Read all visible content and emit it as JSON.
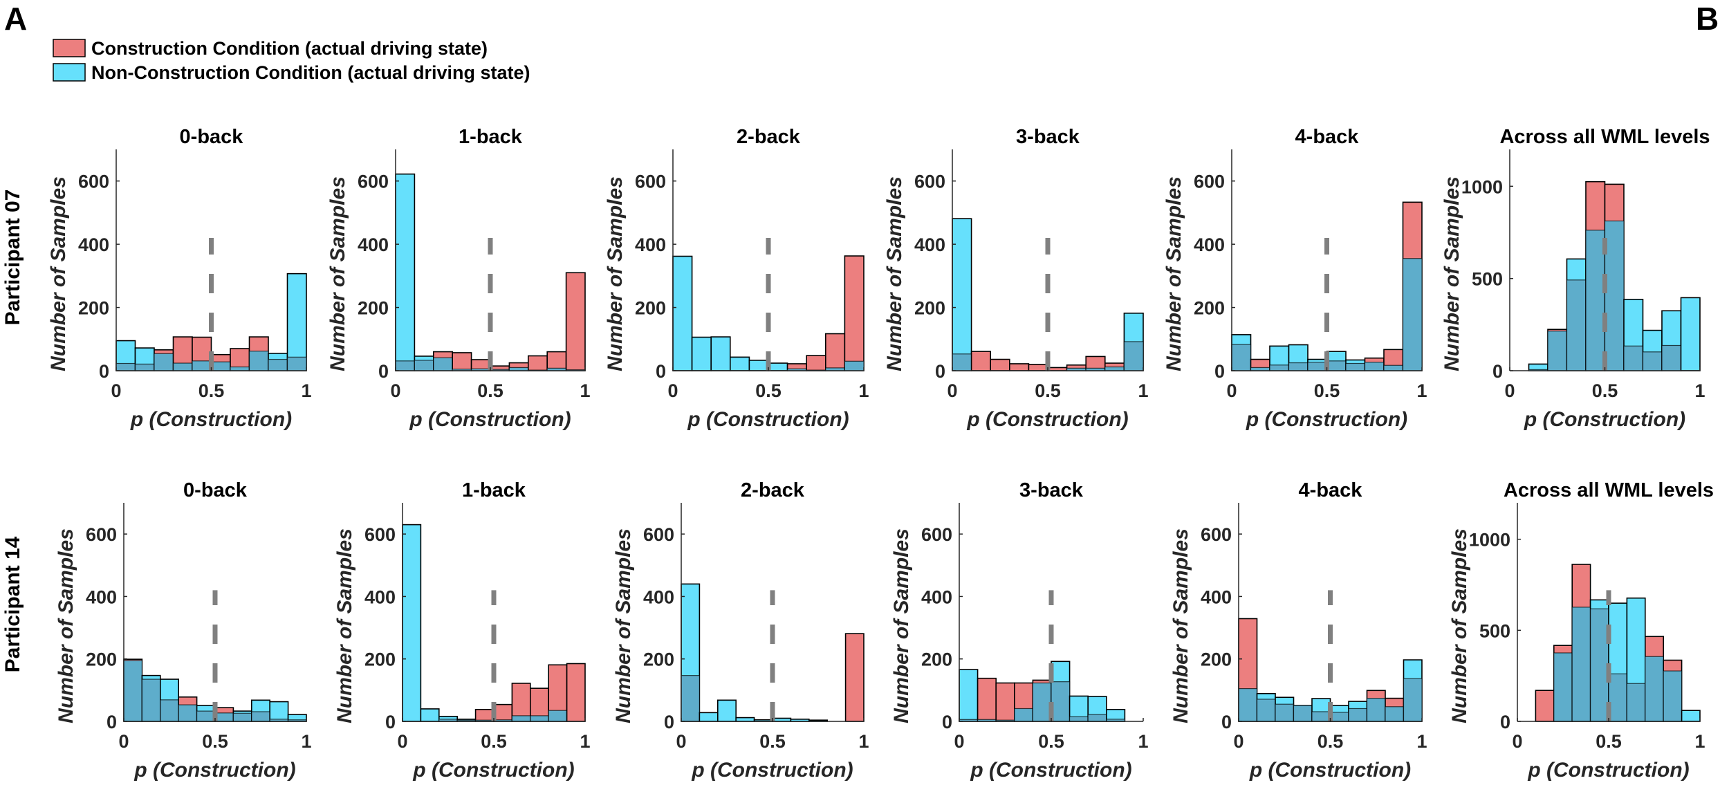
{
  "figure": {
    "panel_letters": [
      "A",
      "B"
    ],
    "legend": [
      {
        "label": "Construction Condition (actual driving state)",
        "color": "#EC7F7F"
      },
      {
        "label": "Non-Construction Condition (actual driving state)",
        "color": "#66E0FC"
      }
    ],
    "overlap_color": "#5EADCB",
    "threshold_color": "#808080",
    "row_labels": [
      "Participant 07",
      "Participant 14"
    ]
  },
  "chart_data": [
    {
      "type": "bar",
      "participant": "Participant 07",
      "title": "0-back",
      "xlabel": "p (Construction)",
      "ylabel": "Number of Samples",
      "xlim": [
        0,
        1
      ],
      "ylim": [
        0,
        700
      ],
      "xticks": [
        "0",
        "0.5",
        "1"
      ],
      "yticks": [
        0,
        200,
        400,
        600
      ],
      "bin_edges": [
        0,
        0.1,
        0.2,
        0.3,
        0.4,
        0.5,
        0.6,
        0.7,
        0.8,
        0.9,
        1
      ],
      "threshold": 0.5,
      "threshold_top": 420,
      "series": [
        {
          "name": "Construction",
          "values": [
            23,
            21,
            66,
            107,
            106,
            51,
            70,
            107,
            36,
            43
          ]
        },
        {
          "name": "Non-Construction",
          "values": [
            95,
            72,
            54,
            24,
            31,
            28,
            12,
            62,
            55,
            307
          ]
        }
      ]
    },
    {
      "type": "bar",
      "participant": "Participant 07",
      "title": "1-back",
      "xlabel": "p (Construction)",
      "ylabel": "Number of Samples",
      "xlim": [
        0,
        1
      ],
      "ylim": [
        0,
        700
      ],
      "xticks": [
        "0",
        "0.5",
        "1"
      ],
      "yticks": [
        0,
        200,
        400,
        600
      ],
      "bin_edges": [
        0,
        0.1,
        0.2,
        0.3,
        0.4,
        0.5,
        0.6,
        0.7,
        0.8,
        0.9,
        1
      ],
      "threshold": 0.5,
      "threshold_top": 420,
      "series": [
        {
          "name": "Construction",
          "values": [
            31,
            33,
            60,
            57,
            35,
            15,
            25,
            47,
            60,
            310
          ]
        },
        {
          "name": "Non-Construction",
          "values": [
            622,
            46,
            41,
            5,
            6,
            4,
            10,
            2,
            8,
            3
          ]
        }
      ]
    },
    {
      "type": "bar",
      "participant": "Participant 07",
      "title": "2-back",
      "xlabel": "p (Construction)",
      "ylabel": "Number of Samples",
      "xlim": [
        0,
        1
      ],
      "ylim": [
        0,
        700
      ],
      "xticks": [
        "0",
        "0.5",
        "1"
      ],
      "yticks": [
        0,
        200,
        400,
        600
      ],
      "bin_edges": [
        0,
        0.1,
        0.2,
        0.3,
        0.4,
        0.5,
        0.6,
        0.7,
        0.8,
        0.9,
        1
      ],
      "threshold": 0.5,
      "threshold_top": 420,
      "series": [
        {
          "name": "Construction",
          "values": [
            0,
            0,
            0,
            0,
            0,
            0,
            22,
            48,
            117,
            363
          ]
        },
        {
          "name": "Non-Construction",
          "values": [
            362,
            106,
            107,
            43,
            33,
            24,
            6,
            2,
            9,
            30
          ]
        }
      ]
    },
    {
      "type": "bar",
      "participant": "Participant 07",
      "title": "3-back",
      "xlabel": "p (Construction)",
      "ylabel": "Number of Samples",
      "xlim": [
        0,
        1
      ],
      "ylim": [
        0,
        700
      ],
      "xticks": [
        "0",
        "0.5",
        "1"
      ],
      "yticks": [
        0,
        200,
        400,
        600
      ],
      "bin_edges": [
        0,
        0.1,
        0.2,
        0.3,
        0.4,
        0.5,
        0.6,
        0.7,
        0.8,
        0.9,
        1
      ],
      "threshold": 0.5,
      "threshold_top": 420,
      "series": [
        {
          "name": "Construction",
          "values": [
            53,
            61,
            36,
            22,
            20,
            10,
            18,
            45,
            24,
            92
          ]
        },
        {
          "name": "Non-Construction",
          "values": [
            481,
            0,
            0,
            0,
            0,
            0,
            8,
            8,
            12,
            182
          ]
        }
      ]
    },
    {
      "type": "bar",
      "participant": "Participant 07",
      "title": "4-back",
      "xlabel": "p (Construction)",
      "ylabel": "Number of Samples",
      "xlim": [
        0,
        1
      ],
      "ylim": [
        0,
        700
      ],
      "xticks": [
        "0",
        "0.5",
        "1"
      ],
      "yticks": [
        0,
        200,
        400,
        600
      ],
      "bin_edges": [
        0,
        0.1,
        0.2,
        0.3,
        0.4,
        0.5,
        0.6,
        0.7,
        0.8,
        0.9,
        1
      ],
      "threshold": 0.5,
      "threshold_top": 420,
      "series": [
        {
          "name": "Construction",
          "values": [
            83,
            36,
            18,
            25,
            27,
            31,
            23,
            40,
            67,
            533
          ]
        },
        {
          "name": "Non-Construction",
          "values": [
            114,
            10,
            78,
            82,
            36,
            61,
            34,
            27,
            17,
            355
          ]
        }
      ]
    },
    {
      "type": "bar",
      "participant": "Participant 07",
      "title": "Across all WML levels",
      "xlabel": "p (Construction)",
      "ylabel": "Number of Samples",
      "xlim": [
        0,
        1
      ],
      "ylim": [
        0,
        1200
      ],
      "xticks": [
        "0",
        "0.5",
        "1"
      ],
      "yticks": [
        0,
        500,
        1000
      ],
      "bin_edges": [
        0,
        0.1,
        0.2,
        0.3,
        0.4,
        0.5,
        0.6,
        0.7,
        0.8,
        0.9,
        1
      ],
      "threshold": 0.5,
      "threshold_top": 720,
      "series": [
        {
          "name": "Construction",
          "values": [
            0,
            6,
            224,
            492,
            1025,
            1011,
            134,
            102,
            137,
            0
          ]
        },
        {
          "name": "Non-Construction",
          "values": [
            0,
            36,
            215,
            606,
            762,
            812,
            387,
            219,
            325,
            396
          ]
        }
      ]
    },
    {
      "type": "bar",
      "participant": "Participant 14",
      "title": "0-back",
      "xlabel": "p (Construction)",
      "ylabel": "Number of Samples",
      "xlim": [
        0,
        1
      ],
      "ylim": [
        0,
        700
      ],
      "xticks": [
        "0",
        "0.5",
        "1"
      ],
      "yticks": [
        0,
        200,
        400,
        600
      ],
      "bin_edges": [
        0,
        0.1,
        0.2,
        0.3,
        0.4,
        0.5,
        0.6,
        0.7,
        0.8,
        0.9,
        1
      ],
      "threshold": 0.5,
      "threshold_top": 420,
      "series": [
        {
          "name": "Construction",
          "values": [
            199,
            135,
            69,
            78,
            33,
            44,
            26,
            31,
            7,
            5
          ]
        },
        {
          "name": "Non-Construction",
          "values": [
            195,
            147,
            135,
            53,
            51,
            27,
            33,
            68,
            63,
            22
          ]
        }
      ]
    },
    {
      "type": "bar",
      "participant": "Participant 14",
      "title": "1-back",
      "xlabel": "p (Construction)",
      "ylabel": "Number of Samples",
      "xlim": [
        0,
        1
      ],
      "ylim": [
        0,
        700
      ],
      "xticks": [
        "0",
        "0.5",
        "1"
      ],
      "yticks": [
        0,
        200,
        400,
        600
      ],
      "bin_edges": [
        0,
        0.1,
        0.2,
        0.3,
        0.4,
        0.5,
        0.6,
        0.7,
        0.8,
        0.9,
        1
      ],
      "threshold": 0.5,
      "threshold_top": 420,
      "series": [
        {
          "name": "Construction",
          "values": [
            0,
            0,
            7,
            4,
            38,
            54,
            122,
            106,
            181,
            185
          ]
        },
        {
          "name": "Non-Construction",
          "values": [
            630,
            40,
            16,
            7,
            4,
            5,
            18,
            18,
            35,
            0
          ]
        }
      ]
    },
    {
      "type": "bar",
      "participant": "Participant 14",
      "title": "2-back",
      "xlabel": "p (Construction)",
      "ylabel": "Number of Samples",
      "xlim": [
        0,
        1
      ],
      "ylim": [
        0,
        700
      ],
      "xticks": [
        "0",
        "0.5",
        "1"
      ],
      "yticks": [
        0,
        200,
        400,
        600
      ],
      "bin_edges": [
        0,
        0.1,
        0.2,
        0.3,
        0.4,
        0.5,
        0.6,
        0.7,
        0.8,
        0.9,
        1
      ],
      "threshold": 0.5,
      "threshold_top": 420,
      "series": [
        {
          "name": "Construction",
          "values": [
            147,
            0,
            0,
            0,
            0,
            0,
            0,
            0,
            0,
            281
          ]
        },
        {
          "name": "Non-Construction",
          "values": [
            440,
            28,
            68,
            12,
            5,
            10,
            7,
            4,
            0,
            0
          ]
        }
      ]
    },
    {
      "type": "bar",
      "participant": "Participant 14",
      "title": "3-back",
      "xlabel": "p (Construction)",
      "ylabel": "Number of Samples",
      "xlim": [
        0,
        1
      ],
      "ylim": [
        0,
        700
      ],
      "xticks": [
        "0",
        "0.5",
        "1"
      ],
      "yticks": [
        0,
        200,
        400,
        600
      ],
      "bin_edges": [
        0,
        0.1,
        0.2,
        0.3,
        0.4,
        0.5,
        0.6,
        0.7,
        0.8,
        0.9,
        1
      ],
      "threshold": 0.5,
      "threshold_top": 420,
      "series": [
        {
          "name": "Construction",
          "values": [
            6,
            138,
            123,
            123,
            132,
            127,
            15,
            22,
            7,
            0
          ]
        },
        {
          "name": "Non-Construction",
          "values": [
            166,
            6,
            4,
            41,
            123,
            192,
            81,
            80,
            38,
            0
          ]
        }
      ]
    },
    {
      "type": "bar",
      "participant": "Participant 14",
      "title": "4-back",
      "xlabel": "p (Construction)",
      "ylabel": "Number of Samples",
      "xlim": [
        0,
        1
      ],
      "ylim": [
        0,
        700
      ],
      "xticks": [
        "0",
        "0.5",
        "1"
      ],
      "yticks": [
        0,
        200,
        400,
        600
      ],
      "bin_edges": [
        0,
        0.1,
        0.2,
        0.3,
        0.4,
        0.5,
        0.6,
        0.7,
        0.8,
        0.9,
        1
      ],
      "threshold": 0.5,
      "threshold_top": 420,
      "series": [
        {
          "name": "Construction",
          "values": [
            329,
            71,
            55,
            51,
            31,
            29,
            41,
            99,
            74,
            137
          ]
        },
        {
          "name": "Non-Construction",
          "values": [
            105,
            89,
            77,
            51,
            73,
            51,
            64,
            74,
            47,
            197
          ]
        }
      ]
    },
    {
      "type": "bar",
      "participant": "Participant 14",
      "title": "Across all WML levels",
      "xlabel": "p (Construction)",
      "ylabel": "Number of Samples",
      "xlim": [
        0,
        1
      ],
      "ylim": [
        0,
        1200
      ],
      "xticks": [
        "0",
        "0.5",
        "1"
      ],
      "yticks": [
        0,
        500,
        1000
      ],
      "bin_edges": [
        0,
        0.1,
        0.2,
        0.3,
        0.4,
        0.5,
        0.6,
        0.7,
        0.8,
        0.9,
        1
      ],
      "threshold": 0.5,
      "threshold_top": 720,
      "series": [
        {
          "name": "Construction",
          "values": [
            0,
            170,
            417,
            862,
            618,
            261,
            208,
            466,
            336,
            0
          ]
        },
        {
          "name": "Non-Construction",
          "values": [
            0,
            0,
            376,
            627,
            667,
            649,
            677,
            356,
            277,
            60
          ]
        }
      ]
    }
  ]
}
